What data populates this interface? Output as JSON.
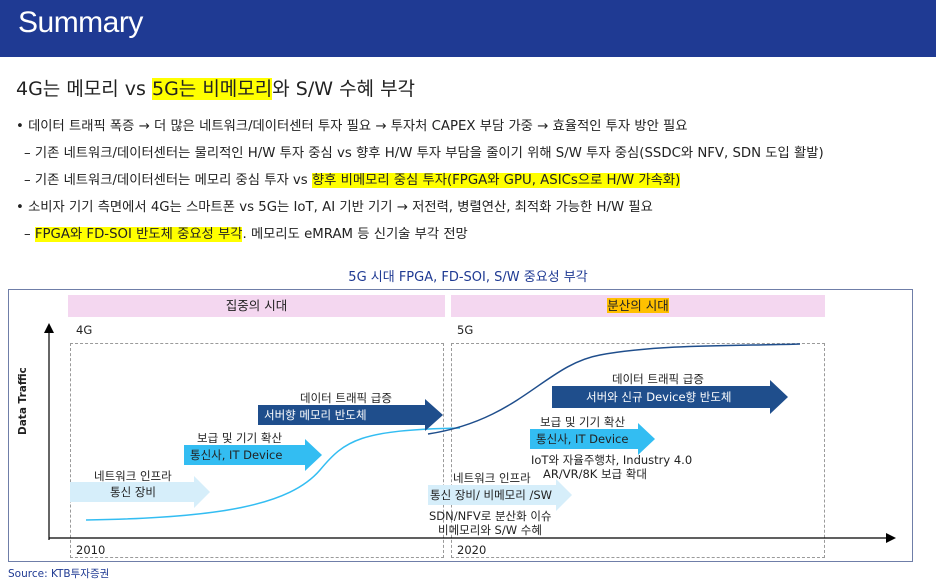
{
  "header": {
    "title": "Summary"
  },
  "subtitle": {
    "part1": "4G는 메모리 vs ",
    "part2": "5G는 비메모리",
    "part3": "와 S/W 수혜 부각"
  },
  "bullets": {
    "b1": "• 데이터 트래픽 폭증 → 더 많은 네트워크/데이터센터 투자 필요 → 투자처 CAPEX 부담 가중 → 효율적인 투자 방안 필요",
    "b1a": "– 기존 네트워크/데이터센터는 물리적인 H/W 투자 중심 vs 향후 H/W 투자 부담을 줄이기 위해 S/W 투자 중심(SSDC와 NFV, SDN 도입 활발)",
    "b1b_pre": "– 기존 네트워크/데이터센터는 메모리 중심 투자 vs ",
    "b1b_hl": "향후 비메모리 중심 투자(FPGA와 GPU, ASICs으로 H/W 가속화)",
    "b2": "• 소비자 기기 측면에서 4G는 스마트폰 vs 5G는 IoT, AI 기반 기기 → 저전력, 병렬연산, 최적화 가능한 H/W 필요",
    "b2a_pre": "– ",
    "b2a_hl": "FPGA와 FD-SOI 반도체 중요성 부각",
    "b2a_post": ". 메모리도 eMRAM 등 신기술 부각 전망"
  },
  "chart": {
    "title": "5G 시대 FPGA, FD-SOI, S/W 중요성 부각",
    "y_label": "Data Traffic",
    "phase_left": "집중의 시대",
    "phase_right": "분산의 시대",
    "gen_left": "4G",
    "gen_right": "5G",
    "year_left": "2010",
    "year_right": "2020",
    "left": {
      "traffic": "데이터 트래픽 급증",
      "server": "서버향 메모리 반도체",
      "spread": "보급 및 기기 확산",
      "telecom": "통신사, IT Device",
      "infra": "네트워크 인프라",
      "equip": "통신 장비"
    },
    "right": {
      "traffic": "데이터 트래픽 급증",
      "server": "서버와 신규 Device향 반도체",
      "spread": "보급 및 기기 확산",
      "telecom": "통신사, IT Device",
      "iot1": "IoT와 자율주행차, Industry 4.0",
      "iot2": "AR/VR/8K 보급 확대",
      "infra": "네트워크 인프라",
      "equip": "통신 장비/ 비메모리 /SW",
      "sdn1": "SDN/NFV로 분산화 이슈",
      "sdn2": "비메모리와 S/W 수혜"
    },
    "colors": {
      "dark_arrow": "#1f4e8c",
      "mid_arrow": "#33bdf2",
      "light_arrow": "#d6eefa",
      "curve": "#1f4e8c"
    }
  },
  "source": "Source: KTB투자증권"
}
